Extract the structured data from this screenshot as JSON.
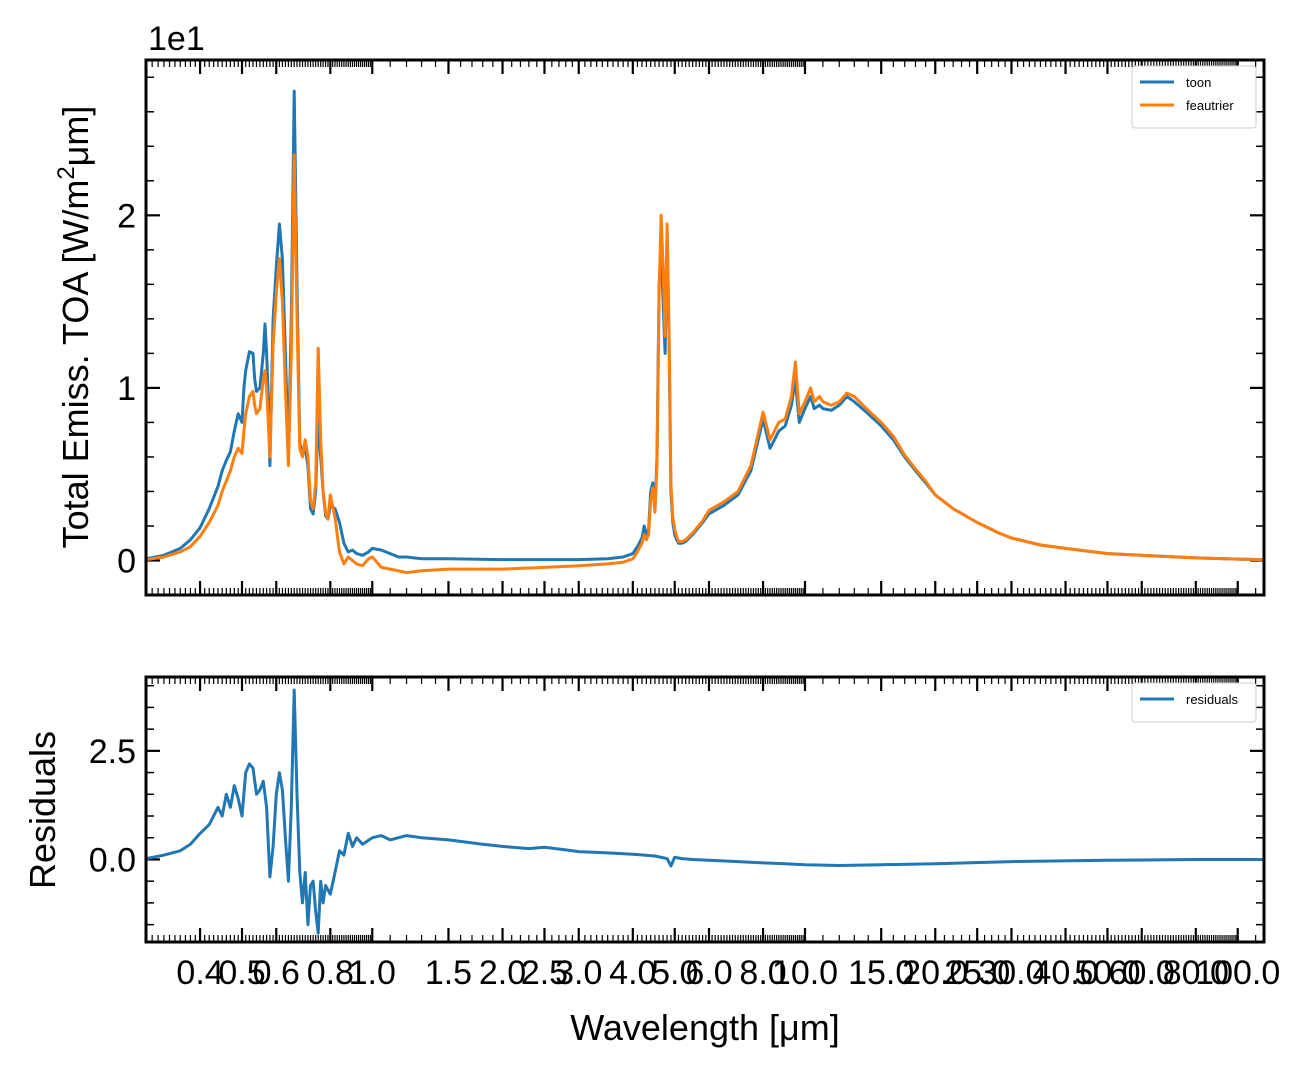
{
  "chart_data": [
    {
      "type": "line",
      "ylabel": "Total Emiss. TOA [W/m²μm]",
      "ylabel_parts": {
        "main": "Total Emiss. TOA [W/m",
        "sup": "2",
        "tail": "μm]"
      },
      "offset_text": "1e1",
      "xscale": "log",
      "ylim": [
        -0.2,
        2.9
      ],
      "yticks": [
        {
          "value": 0,
          "label": "0"
        },
        {
          "value": 1,
          "label": "1"
        },
        {
          "value": 2,
          "label": "2"
        }
      ],
      "legend_position": "top-right",
      "series": [
        {
          "name": "toon",
          "color": "#1f77b4",
          "x": [
            0.3,
            0.33,
            0.36,
            0.38,
            0.4,
            0.42,
            0.44,
            0.45,
            0.46,
            0.47,
            0.48,
            0.49,
            0.5,
            0.505,
            0.51,
            0.52,
            0.53,
            0.535,
            0.54,
            0.55,
            0.56,
            0.565,
            0.57,
            0.575,
            0.58,
            0.59,
            0.6,
            0.61,
            0.62,
            0.63,
            0.64,
            0.65,
            0.66,
            0.67,
            0.68,
            0.69,
            0.7,
            0.71,
            0.72,
            0.73,
            0.74,
            0.75,
            0.76,
            0.77,
            0.78,
            0.79,
            0.8,
            0.82,
            0.84,
            0.86,
            0.88,
            0.9,
            0.92,
            0.95,
            0.98,
            1.0,
            1.05,
            1.1,
            1.15,
            1.2,
            1.3,
            1.5,
            2.0,
            2.5,
            3.0,
            3.5,
            3.8,
            4.0,
            4.1,
            4.2,
            4.25,
            4.3,
            4.35,
            4.4,
            4.45,
            4.5,
            4.55,
            4.6,
            4.65,
            4.7,
            4.75,
            4.8,
            4.85,
            4.9,
            4.95,
            5.0,
            5.05,
            5.1,
            5.2,
            5.3,
            5.5,
            5.8,
            6.0,
            6.5,
            7.0,
            7.5,
            8.0,
            8.3,
            8.5,
            8.7,
            9.0,
            9.3,
            9.5,
            9.6,
            9.7,
            10.0,
            10.3,
            10.5,
            10.8,
            11.0,
            11.5,
            12.0,
            12.5,
            13.0,
            14.0,
            15.0,
            16.0,
            17.0,
            18.0,
            19.0,
            20.0,
            22.0,
            25.0,
            28.0,
            30.0,
            35.0,
            40.0,
            50.0,
            60.0,
            80.0,
            100.0,
            115.0
          ],
          "y": [
            0.01,
            0.03,
            0.07,
            0.12,
            0.19,
            0.3,
            0.43,
            0.52,
            0.58,
            0.63,
            0.75,
            0.85,
            0.8,
            1.0,
            1.1,
            1.21,
            1.2,
            1.05,
            0.98,
            1.0,
            1.2,
            1.37,
            1.2,
            0.95,
            0.55,
            1.4,
            1.7,
            1.95,
            1.75,
            1.2,
            0.62,
            1.4,
            2.72,
            1.6,
            0.68,
            0.62,
            0.65,
            0.55,
            0.3,
            0.27,
            0.4,
            0.85,
            0.6,
            0.4,
            0.26,
            0.24,
            0.32,
            0.3,
            0.22,
            0.1,
            0.05,
            0.06,
            0.04,
            0.03,
            0.05,
            0.07,
            0.06,
            0.04,
            0.02,
            0.02,
            0.01,
            0.01,
            0.005,
            0.005,
            0.005,
            0.01,
            0.02,
            0.04,
            0.08,
            0.13,
            0.2,
            0.15,
            0.18,
            0.4,
            0.45,
            0.3,
            0.6,
            1.6,
            1.8,
            1.5,
            1.2,
            1.9,
            1.3,
            0.4,
            0.22,
            0.15,
            0.12,
            0.1,
            0.1,
            0.11,
            0.15,
            0.22,
            0.27,
            0.32,
            0.38,
            0.52,
            0.82,
            0.65,
            0.7,
            0.75,
            0.78,
            0.9,
            1.05,
            0.92,
            0.8,
            0.88,
            0.95,
            0.88,
            0.9,
            0.88,
            0.87,
            0.9,
            0.95,
            0.92,
            0.85,
            0.78,
            0.7,
            0.6,
            0.52,
            0.45,
            0.38,
            0.3,
            0.22,
            0.16,
            0.13,
            0.09,
            0.07,
            0.04,
            0.03,
            0.015,
            0.008,
            0.005
          ]
        },
        {
          "name": "feautrier",
          "color": "#ff7f0e",
          "x": [
            0.3,
            0.33,
            0.36,
            0.38,
            0.4,
            0.42,
            0.44,
            0.45,
            0.46,
            0.47,
            0.48,
            0.49,
            0.5,
            0.505,
            0.51,
            0.52,
            0.53,
            0.535,
            0.54,
            0.55,
            0.56,
            0.565,
            0.57,
            0.575,
            0.58,
            0.59,
            0.6,
            0.61,
            0.62,
            0.63,
            0.64,
            0.65,
            0.66,
            0.67,
            0.68,
            0.69,
            0.7,
            0.71,
            0.72,
            0.73,
            0.74,
            0.75,
            0.76,
            0.77,
            0.78,
            0.79,
            0.8,
            0.82,
            0.84,
            0.86,
            0.88,
            0.9,
            0.92,
            0.95,
            0.98,
            1.0,
            1.05,
            1.1,
            1.15,
            1.2,
            1.3,
            1.5,
            2.0,
            2.5,
            3.0,
            3.5,
            3.8,
            4.0,
            4.1,
            4.2,
            4.25,
            4.3,
            4.35,
            4.4,
            4.45,
            4.5,
            4.55,
            4.6,
            4.65,
            4.7,
            4.75,
            4.8,
            4.85,
            4.9,
            4.95,
            5.0,
            5.05,
            5.1,
            5.2,
            5.3,
            5.5,
            5.8,
            6.0,
            6.5,
            7.0,
            7.5,
            8.0,
            8.3,
            8.5,
            8.7,
            9.0,
            9.3,
            9.5,
            9.6,
            9.7,
            10.0,
            10.3,
            10.5,
            10.8,
            11.0,
            11.5,
            12.0,
            12.5,
            13.0,
            14.0,
            15.0,
            16.0,
            17.0,
            18.0,
            19.0,
            20.0,
            22.0,
            25.0,
            28.0,
            30.0,
            35.0,
            40.0,
            50.0,
            60.0,
            80.0,
            100.0,
            115.0
          ],
          "y": [
            0.005,
            0.02,
            0.05,
            0.08,
            0.14,
            0.22,
            0.32,
            0.4,
            0.46,
            0.52,
            0.6,
            0.65,
            0.62,
            0.75,
            0.85,
            0.95,
            0.98,
            0.9,
            0.85,
            0.88,
            1.05,
            1.1,
            1.0,
            0.8,
            0.6,
            1.25,
            1.55,
            1.75,
            1.5,
            1.0,
            0.55,
            1.2,
            2.35,
            1.4,
            0.65,
            0.6,
            0.7,
            0.6,
            0.35,
            0.3,
            0.45,
            1.23,
            0.7,
            0.4,
            0.28,
            0.24,
            0.38,
            0.25,
            0.05,
            -0.02,
            0.02,
            0.0,
            -0.02,
            -0.03,
            0.01,
            0.02,
            -0.04,
            -0.05,
            -0.06,
            -0.07,
            -0.06,
            -0.05,
            -0.05,
            -0.04,
            -0.03,
            -0.02,
            -0.01,
            0.01,
            0.05,
            0.1,
            0.15,
            0.12,
            0.15,
            0.35,
            0.42,
            0.28,
            0.55,
            1.55,
            2.0,
            1.7,
            1.3,
            1.95,
            1.35,
            0.45,
            0.25,
            0.18,
            0.14,
            0.11,
            0.11,
            0.12,
            0.16,
            0.23,
            0.29,
            0.34,
            0.4,
            0.55,
            0.86,
            0.7,
            0.75,
            0.8,
            0.82,
            0.95,
            1.15,
            1.0,
            0.85,
            0.92,
            1.0,
            0.92,
            0.95,
            0.92,
            0.9,
            0.92,
            0.97,
            0.95,
            0.87,
            0.8,
            0.72,
            0.61,
            0.53,
            0.46,
            0.38,
            0.3,
            0.22,
            0.16,
            0.13,
            0.09,
            0.07,
            0.04,
            0.03,
            0.015,
            0.008,
            0.005
          ]
        }
      ]
    },
    {
      "type": "line",
      "ylabel": "Residuals",
      "xlabel": "Wavelength [μm]",
      "xscale": "log",
      "xlim": [
        0.3,
        115.0
      ],
      "ylim": [
        -1.9,
        4.2
      ],
      "yticks": [
        {
          "value": 0.0,
          "label": "0.0"
        },
        {
          "value": 2.5,
          "label": "2.5"
        }
      ],
      "xticks": [
        {
          "value": 0.4,
          "label": "0.4"
        },
        {
          "value": 0.5,
          "label": "0.5"
        },
        {
          "value": 0.6,
          "label": "0.6"
        },
        {
          "value": 0.8,
          "label": "0.8"
        },
        {
          "value": 1.0,
          "label": "1.0"
        },
        {
          "value": 1.5,
          "label": "1.5"
        },
        {
          "value": 2.0,
          "label": "2.0"
        },
        {
          "value": 2.5,
          "label": "2.5"
        },
        {
          "value": 3.0,
          "label": "3.0"
        },
        {
          "value": 4.0,
          "label": "4.0"
        },
        {
          "value": 5.0,
          "label": "5.0"
        },
        {
          "value": 6.0,
          "label": "6.0"
        },
        {
          "value": 8.0,
          "label": "8.0"
        },
        {
          "value": 10.0,
          "label": "10.0"
        },
        {
          "value": 15.0,
          "label": "15.0"
        },
        {
          "value": 20.0,
          "label": "20.0"
        },
        {
          "value": 25.0,
          "label": "25.0"
        },
        {
          "value": 30.0,
          "label": "30.0"
        },
        {
          "value": 40.0,
          "label": "40.0"
        },
        {
          "value": 50.0,
          "label": "50.0"
        },
        {
          "value": 60.0,
          "label": "60.0"
        },
        {
          "value": 80.0,
          "label": "80.0"
        },
        {
          "value": 100.0,
          "label": "100.0"
        }
      ],
      "legend_position": "top-right",
      "series": [
        {
          "name": "residuals",
          "color": "#1f77b4",
          "x": [
            0.3,
            0.33,
            0.36,
            0.38,
            0.4,
            0.42,
            0.44,
            0.45,
            0.46,
            0.47,
            0.48,
            0.49,
            0.5,
            0.51,
            0.52,
            0.53,
            0.54,
            0.55,
            0.56,
            0.57,
            0.58,
            0.59,
            0.6,
            0.61,
            0.62,
            0.63,
            0.64,
            0.65,
            0.66,
            0.67,
            0.68,
            0.69,
            0.7,
            0.71,
            0.72,
            0.73,
            0.74,
            0.75,
            0.76,
            0.77,
            0.78,
            0.8,
            0.82,
            0.84,
            0.86,
            0.88,
            0.9,
            0.92,
            0.95,
            1.0,
            1.05,
            1.1,
            1.2,
            1.3,
            1.5,
            1.8,
            2.0,
            2.3,
            2.5,
            2.8,
            3.0,
            3.5,
            4.0,
            4.5,
            4.8,
            4.9,
            5.0,
            5.2,
            5.5,
            6.0,
            7.0,
            8.0,
            9.0,
            10.0,
            11.0,
            12.0,
            15.0,
            20.0,
            30.0,
            50.0,
            80.0,
            115.0
          ],
          "y": [
            0.02,
            0.1,
            0.2,
            0.35,
            0.6,
            0.8,
            1.2,
            1.0,
            1.5,
            1.2,
            1.7,
            1.4,
            1.0,
            2.0,
            2.2,
            2.1,
            1.5,
            1.6,
            1.8,
            1.2,
            -0.4,
            0.3,
            1.5,
            2.0,
            1.6,
            0.5,
            -0.5,
            1.2,
            3.9,
            1.5,
            -0.3,
            -1.0,
            -0.3,
            -1.5,
            -0.6,
            -0.5,
            -1.2,
            -1.7,
            -0.5,
            -1.0,
            -0.6,
            -0.8,
            -0.3,
            0.2,
            0.1,
            0.6,
            0.3,
            0.5,
            0.35,
            0.5,
            0.55,
            0.45,
            0.55,
            0.5,
            0.45,
            0.35,
            0.3,
            0.25,
            0.28,
            0.22,
            0.18,
            0.15,
            0.12,
            0.08,
            0.02,
            -0.15,
            0.05,
            0.02,
            0.0,
            -0.02,
            -0.05,
            -0.08,
            -0.1,
            -0.12,
            -0.13,
            -0.14,
            -0.12,
            -0.1,
            -0.05,
            -0.02,
            0.0,
            0.0
          ]
        }
      ]
    }
  ]
}
